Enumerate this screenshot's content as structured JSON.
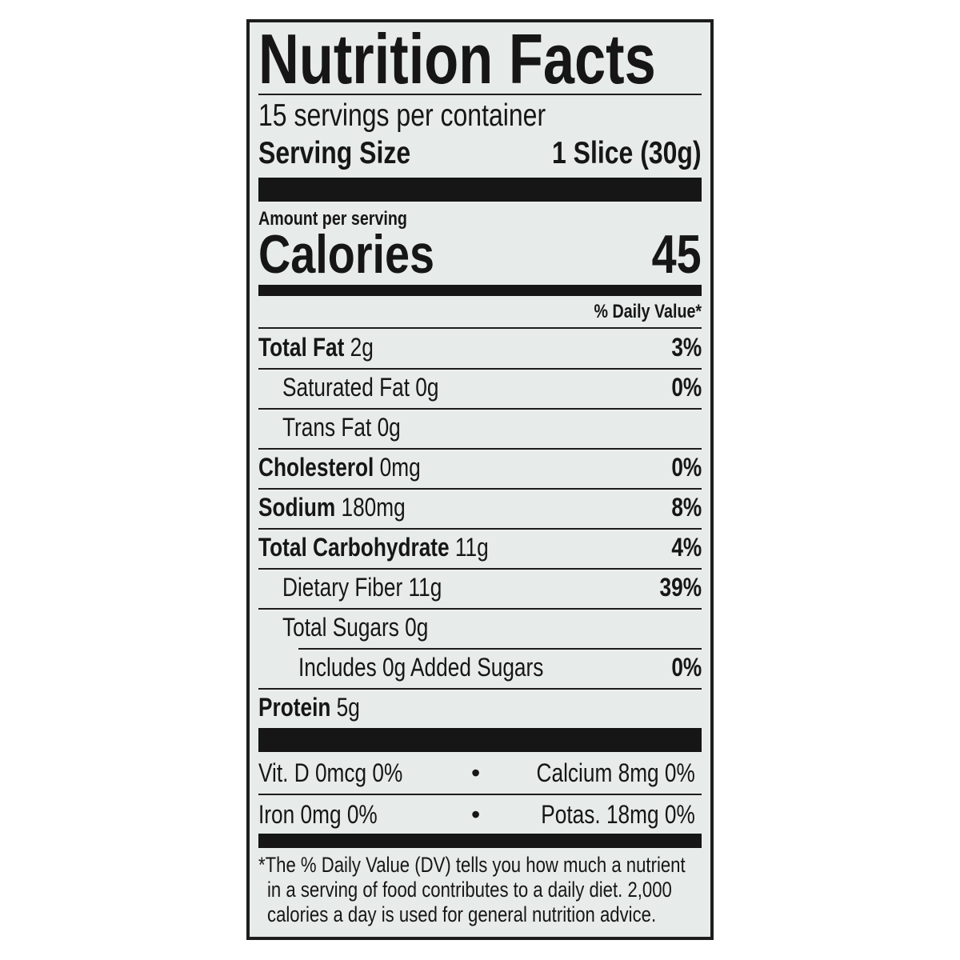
{
  "title": "Nutrition Facts",
  "servings_per_container": "15 servings per container",
  "serving_size": {
    "label": "Serving Size",
    "value": "1 Slice (30g)"
  },
  "amount_per_serving": "Amount per serving",
  "calories": {
    "label": "Calories",
    "value": "45"
  },
  "dv_header": "% Daily Value*",
  "nutrients": [
    {
      "name": "Total Fat",
      "amount": "2g",
      "dv": "3%"
    },
    {
      "name": "Saturated Fat",
      "amount": "0g",
      "dv": "0%"
    },
    {
      "name": "Trans Fat",
      "amount": "0g",
      "dv": ""
    },
    {
      "name": "Cholesterol",
      "amount": "0mg",
      "dv": "0%"
    },
    {
      "name": "Sodium",
      "amount": "180mg",
      "dv": "8%"
    },
    {
      "name": "Total Carbohydrate",
      "amount": "11g",
      "dv": "4%"
    },
    {
      "name": "Dietary Fiber",
      "amount": "11g",
      "dv": "39%"
    },
    {
      "name": "Total Sugars",
      "amount": "0g",
      "dv": ""
    },
    {
      "name": "Includes 0g Added Sugars",
      "amount": "",
      "dv": "0%"
    },
    {
      "name": "Protein",
      "amount": "5g",
      "dv": ""
    }
  ],
  "vitamins": [
    {
      "left": "Vit. D 0mcg 0%",
      "right": "Calcium 8mg 0%"
    },
    {
      "left": "Iron 0mg 0%",
      "right": "Potas. 18mg 0%"
    }
  ],
  "bullet": "•",
  "footnote": [
    "*The % Daily Value (DV) tells you how much a nutrient",
    "in a serving of food contributes to a daily diet. 2,000",
    "calories a day is used for general nutrition advice."
  ]
}
